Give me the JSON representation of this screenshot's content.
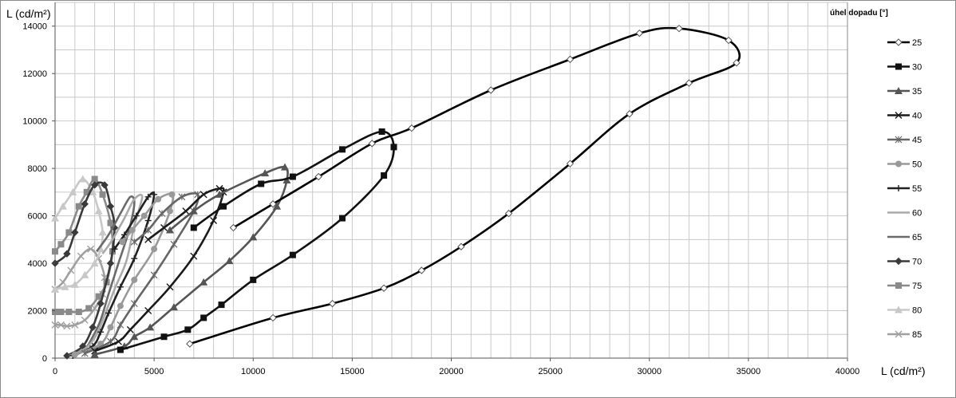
{
  "chart_data": {
    "type": "line",
    "smooth": true,
    "xlabel": "L (cd/m²)",
    "ylabel": "L (cd/m²)",
    "xlim": [
      0,
      40000
    ],
    "ylim": [
      0,
      15000
    ],
    "xticks": [
      0,
      5000,
      10000,
      15000,
      20000,
      25000,
      30000,
      35000,
      40000
    ],
    "yticks": [
      0,
      2000,
      4000,
      6000,
      8000,
      10000,
      12000,
      14000
    ],
    "grid": true,
    "legend_title": "úhel dopadu  [°]",
    "legend_position": "right",
    "series": [
      {
        "name": "25",
        "color": "#000000",
        "marker": "diamond-open",
        "points": [
          [
            6800,
            600
          ],
          [
            11000,
            1700
          ],
          [
            14000,
            2300
          ],
          [
            16600,
            2950
          ],
          [
            18500,
            3700
          ],
          [
            20500,
            4700
          ],
          [
            22900,
            6100
          ],
          [
            26000,
            8200
          ],
          [
            29000,
            10300
          ],
          [
            32000,
            11600
          ],
          [
            34400,
            12450
          ],
          [
            34000,
            13400
          ],
          [
            31500,
            13900
          ],
          [
            29500,
            13700
          ],
          [
            26000,
            12600
          ],
          [
            22000,
            11300
          ],
          [
            18000,
            9700
          ],
          [
            16000,
            9050
          ],
          [
            13300,
            7650
          ],
          [
            11000,
            6500
          ],
          [
            9000,
            5500
          ]
        ]
      },
      {
        "name": "30",
        "color": "#111111",
        "marker": "square",
        "points": [
          [
            3300,
            350
          ],
          [
            5500,
            900
          ],
          [
            6700,
            1200
          ],
          [
            7500,
            1700
          ],
          [
            8400,
            2250
          ],
          [
            10000,
            3300
          ],
          [
            12000,
            4350
          ],
          [
            14500,
            5900
          ],
          [
            16600,
            7700
          ],
          [
            17100,
            8900
          ],
          [
            16500,
            9550
          ],
          [
            14500,
            8800
          ],
          [
            12000,
            7650
          ],
          [
            10400,
            7350
          ],
          [
            8500,
            6400
          ],
          [
            7000,
            5500
          ]
        ]
      },
      {
        "name": "35",
        "color": "#555555",
        "marker": "triangle",
        "points": [
          [
            2000,
            150
          ],
          [
            3500,
            500
          ],
          [
            4000,
            900
          ],
          [
            4800,
            1300
          ],
          [
            6000,
            2150
          ],
          [
            7500,
            3200
          ],
          [
            8800,
            4100
          ],
          [
            10000,
            5100
          ],
          [
            11200,
            6400
          ],
          [
            11700,
            7500
          ],
          [
            11600,
            8050
          ],
          [
            10600,
            7800
          ],
          [
            8300,
            6900
          ],
          [
            7000,
            6200
          ],
          [
            5800,
            5400
          ]
        ]
      },
      {
        "name": "40",
        "color": "#1a1a1a",
        "marker": "x",
        "points": [
          [
            2000,
            300
          ],
          [
            3200,
            700
          ],
          [
            3800,
            1200
          ],
          [
            4700,
            2000
          ],
          [
            5800,
            3000
          ],
          [
            7000,
            4300
          ],
          [
            8000,
            5800
          ],
          [
            8500,
            7000
          ],
          [
            8300,
            7150
          ],
          [
            7500,
            6900
          ],
          [
            6600,
            6200
          ],
          [
            5500,
            5500
          ],
          [
            4700,
            5000
          ]
        ]
      },
      {
        "name": "45",
        "color": "#666666",
        "marker": "asterisk",
        "points": [
          [
            1500,
            200
          ],
          [
            2800,
            700
          ],
          [
            3300,
            1400
          ],
          [
            4000,
            2300
          ],
          [
            5000,
            3500
          ],
          [
            6000,
            4800
          ],
          [
            7000,
            6200
          ],
          [
            7200,
            6900
          ],
          [
            6400,
            6800
          ],
          [
            5400,
            6100
          ],
          [
            4700,
            5400
          ],
          [
            4000,
            4900
          ]
        ]
      },
      {
        "name": "50",
        "color": "#999999",
        "marker": "circle",
        "points": [
          [
            1000,
            150
          ],
          [
            2300,
            600
          ],
          [
            2800,
            1300
          ],
          [
            3300,
            2200
          ],
          [
            4000,
            3300
          ],
          [
            5000,
            4600
          ],
          [
            5800,
            6200
          ],
          [
            5900,
            6900
          ],
          [
            5200,
            6700
          ],
          [
            4500,
            6000
          ],
          [
            3900,
            5400
          ],
          [
            3400,
            4900
          ]
        ]
      },
      {
        "name": "55",
        "color": "#222222",
        "marker": "plus",
        "points": [
          [
            900,
            100
          ],
          [
            1900,
            500
          ],
          [
            2300,
            1100
          ],
          [
            2700,
            1900
          ],
          [
            3300,
            3000
          ],
          [
            4000,
            4200
          ],
          [
            4700,
            5800
          ],
          [
            5000,
            6900
          ],
          [
            4700,
            6800
          ],
          [
            4100,
            6000
          ],
          [
            3500,
            5200
          ],
          [
            3000,
            4600
          ]
        ]
      },
      {
        "name": "60",
        "color": "#aaaaaa",
        "marker": "none",
        "points": [
          [
            800,
            100
          ],
          [
            1600,
            450
          ],
          [
            2100,
            1000
          ],
          [
            2500,
            1800
          ],
          [
            3000,
            2900
          ],
          [
            3600,
            4100
          ],
          [
            4000,
            5600
          ],
          [
            4400,
            6800
          ],
          [
            4000,
            6700
          ],
          [
            3500,
            5900
          ],
          [
            2900,
            5000
          ],
          [
            2400,
            4400
          ]
        ]
      },
      {
        "name": "65",
        "color": "#6a6a6a",
        "marker": "none",
        "points": [
          [
            700,
            100
          ],
          [
            1500,
            400
          ],
          [
            1900,
            900
          ],
          [
            2300,
            1600
          ],
          [
            2700,
            2700
          ],
          [
            3200,
            4000
          ],
          [
            3700,
            5300
          ],
          [
            4000,
            6500
          ],
          [
            3800,
            6800
          ],
          [
            3300,
            6100
          ],
          [
            2700,
            5200
          ],
          [
            2100,
            4500
          ]
        ]
      },
      {
        "name": "70",
        "color": "#3a3a3a",
        "marker": "diamond",
        "points": [
          [
            600,
            100
          ],
          [
            1400,
            500
          ],
          [
            1900,
            1300
          ],
          [
            2300,
            2300
          ],
          [
            2800,
            4000
          ],
          [
            3000,
            5500
          ],
          [
            2800,
            6400
          ],
          [
            2500,
            7300
          ],
          [
            2000,
            7300
          ],
          [
            1500,
            6500
          ],
          [
            1000,
            5300
          ],
          [
            600,
            4400
          ],
          [
            0,
            4000
          ]
        ]
      },
      {
        "name": "75",
        "color": "#8a8a8a",
        "marker": "square",
        "points": [
          [
            0,
            1950
          ],
          [
            300,
            1950
          ],
          [
            700,
            1950
          ],
          [
            1200,
            1950
          ],
          [
            1700,
            2100
          ],
          [
            2200,
            2600
          ],
          [
            2600,
            3200
          ],
          [
            2900,
            4500
          ],
          [
            2800,
            5700
          ],
          [
            2400,
            6900
          ],
          [
            2000,
            7550
          ],
          [
            1600,
            7000
          ],
          [
            1200,
            6400
          ],
          [
            700,
            5300
          ],
          [
            300,
            4800
          ],
          [
            0,
            4500
          ]
        ]
      },
      {
        "name": "80",
        "color": "#c8c8c8",
        "marker": "triangle",
        "points": [
          [
            0,
            2900
          ],
          [
            500,
            3000
          ],
          [
            1000,
            3100
          ],
          [
            1500,
            3500
          ],
          [
            2000,
            4000
          ],
          [
            2300,
            4600
          ],
          [
            2400,
            5300
          ],
          [
            2200,
            6200
          ],
          [
            1900,
            7000
          ],
          [
            1400,
            7550
          ],
          [
            900,
            7000
          ],
          [
            400,
            6400
          ],
          [
            0,
            5900
          ]
        ]
      },
      {
        "name": "85",
        "color": "#a0a0a0",
        "marker": "x",
        "points": [
          [
            0,
            1400
          ],
          [
            300,
            1400
          ],
          [
            600,
            1350
          ],
          [
            1000,
            1400
          ],
          [
            1500,
            1600
          ],
          [
            2000,
            2100
          ],
          [
            2400,
            2700
          ],
          [
            2500,
            3400
          ],
          [
            2200,
            4200
          ],
          [
            1800,
            4600
          ],
          [
            1300,
            4300
          ],
          [
            800,
            3700
          ],
          [
            400,
            3200
          ],
          [
            0,
            2900
          ]
        ]
      }
    ]
  }
}
